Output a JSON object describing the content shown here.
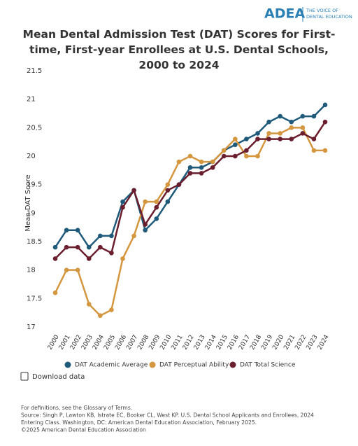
{
  "header": {
    "logo": "ADEA",
    "tagline": [
      "THE VOICE OF",
      "DENTAL EDUCATION"
    ]
  },
  "chart_data": {
    "type": "line",
    "title": "Mean Dental Admission Test (DAT) Scores for First-time, First-year Enrollees at U.S. Dental Schools, 2000 to 2024",
    "y_label": "Mean DAT Score",
    "categories": [
      "2000",
      "2001",
      "2002",
      "2003",
      "2004",
      "2005",
      "2006",
      "2007",
      "2008",
      "2009",
      "2010",
      "2011",
      "2012",
      "2013",
      "2014",
      "2015",
      "2016",
      "2017",
      "2018",
      "2019",
      "2020",
      "2021",
      "2022",
      "2023",
      "2024"
    ],
    "series": [
      {
        "name": "DAT Academic Average",
        "color": "#1f5a7a",
        "values": [
          18.4,
          18.7,
          18.7,
          18.4,
          18.6,
          18.6,
          19.2,
          19.4,
          18.7,
          18.9,
          19.2,
          19.5,
          19.8,
          19.8,
          19.9,
          20.1,
          20.2,
          20.3,
          20.4,
          20.6,
          20.7,
          20.6,
          20.7,
          20.7,
          20.9
        ]
      },
      {
        "name": "DAT Perceptual Ability",
        "color": "#d4963f",
        "values": [
          17.6,
          18.0,
          18.0,
          17.4,
          17.2,
          17.3,
          18.2,
          18.6,
          19.2,
          19.2,
          19.5,
          19.9,
          20.0,
          19.9,
          19.9,
          20.1,
          20.3,
          20.0,
          20.0,
          20.4,
          20.4,
          20.5,
          20.5,
          20.1,
          20.1
        ]
      },
      {
        "name": "DAT Total Science",
        "color": "#6b1e2e",
        "values": [
          18.2,
          18.4,
          18.4,
          18.2,
          18.4,
          18.3,
          19.1,
          19.4,
          18.8,
          19.1,
          19.4,
          19.5,
          19.7,
          19.7,
          19.8,
          20.0,
          20.0,
          20.1,
          20.3,
          20.3,
          20.3,
          20.3,
          20.4,
          20.3,
          20.6
        ]
      }
    ],
    "ylim": [
      17,
      21.5
    ],
    "yticks": [
      17,
      17.5,
      18,
      18.5,
      19,
      19.5,
      20,
      20.5,
      21,
      21.5
    ],
    "grid": false
  },
  "download": "Download data",
  "footer": [
    "For definitions, see the Glossary of Terms.",
    "Source: Singh P, Lawton KB, Istrate EC, Booker CL, West KP. U.S. Dental School Applicants and Enrollees, 2024",
    "Entering Class. Washington, DC: American Dental Education Association, February 2025.",
    "©2025 American Dental Education Association"
  ]
}
